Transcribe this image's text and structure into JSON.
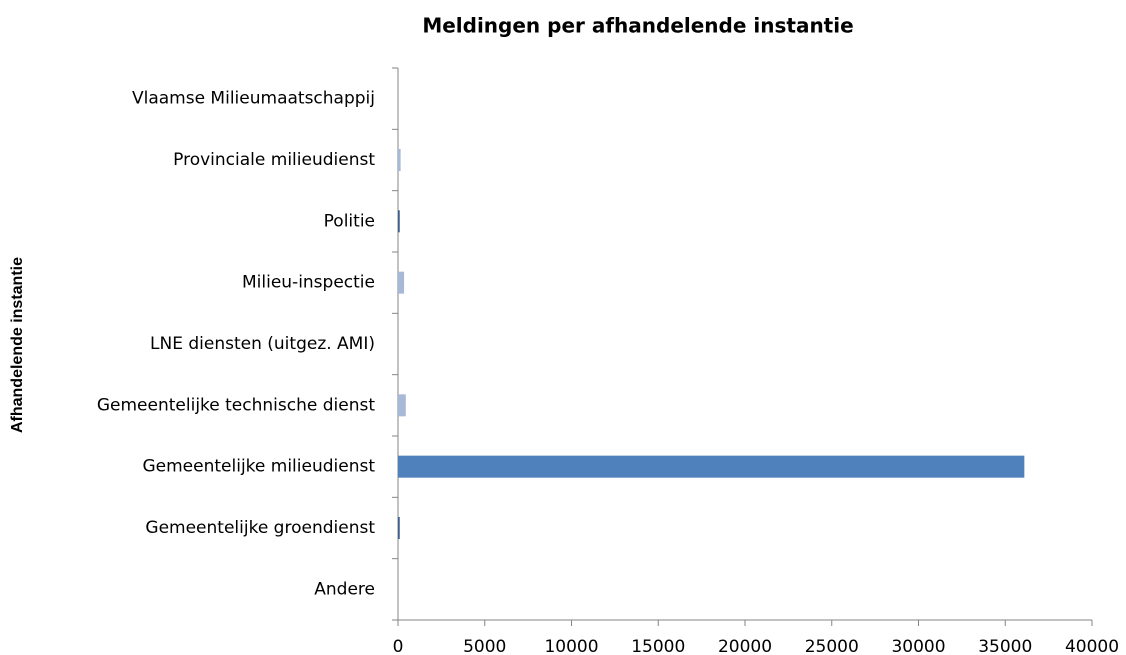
{
  "chart_data": {
    "type": "bar",
    "orientation": "horizontal",
    "title": "Meldingen per afhandelende instantie",
    "y_label": "Afhandelende instantie",
    "categories": [
      "Vlaamse Milieumaatschappij",
      "Provinciale milieudienst",
      "Politie",
      "Milieu-inspectie",
      "LNE diensten (uitgez. AMI)",
      "Gemeentelijke technische dienst",
      "Gemeentelijke milieudienst",
      "Gemeentelijke groendienst",
      "Andere"
    ],
    "values": [
      0,
      150,
      100,
      350,
      0,
      450,
      36100,
      100,
      0
    ],
    "colors": [
      "#a7b8d8",
      "#a7b8d8",
      "#3a5f8f",
      "#a7b8d8",
      "#a7b8d8",
      "#a7b8d8",
      "#4f81bd",
      "#3a5f8f",
      "#a7b8d8"
    ],
    "xlim": [
      0,
      40000
    ],
    "xticks": [
      0,
      5000,
      10000,
      15000,
      20000,
      25000,
      30000,
      35000,
      40000
    ],
    "grid": false
  }
}
